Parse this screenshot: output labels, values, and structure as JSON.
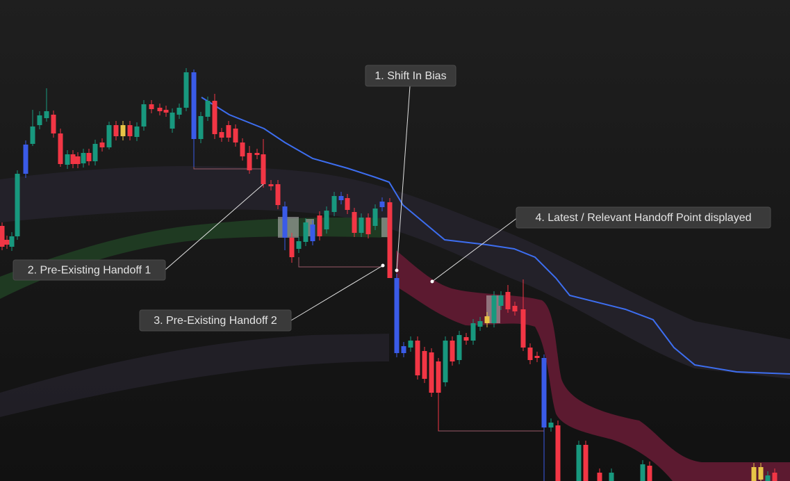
{
  "annotations": [
    "1. Shift In Bias",
    "2. Pre-Existing Handoff 1",
    "3. Pre-Existing Handoff 2",
    "4. Latest / Relevant Handoff Point displayed"
  ]
}
